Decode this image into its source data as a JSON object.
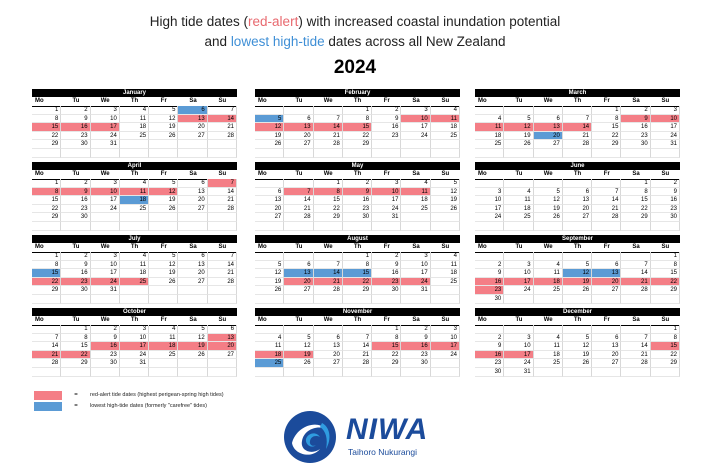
{
  "title": {
    "line1_prefix": "High tide dates (",
    "line1_red": "red-alert",
    "line1_suffix": ") with increased coastal inundation potential",
    "line2_prefix": "and ",
    "line2_blue": "lowest high-tide",
    "line2_suffix": " dates across all New Zealand",
    "year": "2024"
  },
  "weekdays": [
    "Mo",
    "Tu",
    "We",
    "Th",
    "Fr",
    "Sa",
    "Su"
  ],
  "colors": {
    "red_alert": "#f47e86",
    "lowest": "#5b9bd5"
  },
  "months": [
    {
      "name": "January",
      "offset": 0,
      "days": 31,
      "red": [
        13,
        14,
        15,
        16,
        17
      ],
      "blue": [
        6
      ]
    },
    {
      "name": "February",
      "offset": 3,
      "days": 29,
      "red": [
        10,
        11,
        12,
        13,
        14,
        15
      ],
      "blue": [
        5
      ]
    },
    {
      "name": "March",
      "offset": 4,
      "days": 31,
      "red": [
        9,
        10,
        11,
        12,
        13,
        14
      ],
      "blue": [
        20
      ]
    },
    {
      "name": "April",
      "offset": 0,
      "days": 30,
      "red": [
        7,
        8,
        9,
        10,
        11,
        12
      ],
      "blue": [
        18
      ]
    },
    {
      "name": "May",
      "offset": 2,
      "days": 31,
      "red": [
        7,
        8,
        9,
        10,
        11
      ],
      "blue": []
    },
    {
      "name": "June",
      "offset": 5,
      "days": 30,
      "red": [],
      "blue": []
    },
    {
      "name": "July",
      "offset": 0,
      "days": 31,
      "red": [
        22,
        23,
        24,
        25
      ],
      "blue": [
        15
      ]
    },
    {
      "name": "August",
      "offset": 3,
      "days": 31,
      "red": [
        20,
        21,
        22,
        23,
        24
      ],
      "blue": [
        13,
        14,
        15
      ]
    },
    {
      "name": "September",
      "offset": 6,
      "days": 30,
      "red": [
        16,
        17,
        18,
        19,
        20,
        21,
        22,
        23
      ],
      "blue": [
        12,
        13
      ]
    },
    {
      "name": "October",
      "offset": 1,
      "days": 31,
      "red": [
        13,
        16,
        17,
        18,
        19,
        20,
        21,
        22
      ],
      "blue": []
    },
    {
      "name": "November",
      "offset": 4,
      "days": 30,
      "red": [
        15,
        16,
        17,
        18,
        19
      ],
      "blue": [
        25
      ]
    },
    {
      "name": "December",
      "offset": 6,
      "days": 31,
      "red": [
        15,
        16,
        17
      ],
      "blue": []
    }
  ],
  "legend": {
    "eq": "=",
    "red_text": "red-alert tide dates (highest perigean-spring high tides)",
    "blue_text": "lowest high-tide dates (formerly \"carefree\" tides)"
  },
  "logo": {
    "word": "NIWA",
    "sub": "Taihoro Nukurangi"
  }
}
